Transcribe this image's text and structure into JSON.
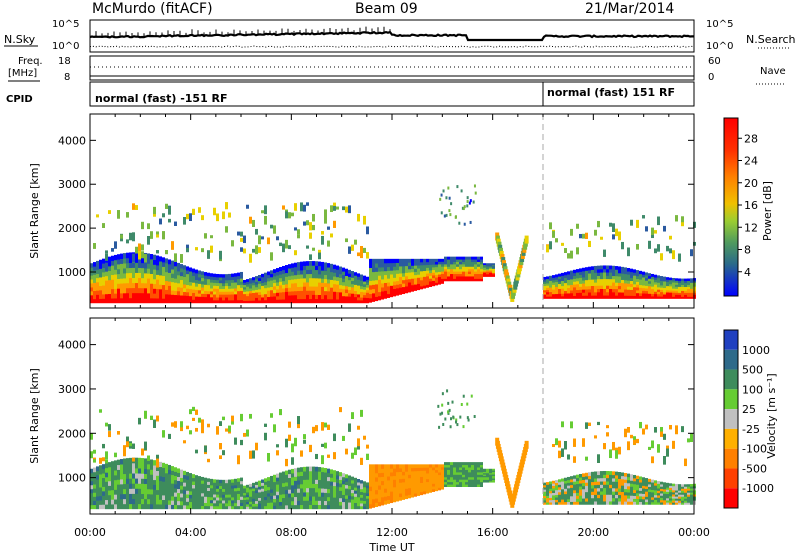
{
  "header": {
    "station": "McMurdo (fitACF)",
    "beam": "Beam 09",
    "date": "21/Mar/2014"
  },
  "top_panels": {
    "nsky_label": "N.Sky",
    "nsky_ticks": [
      "10^5",
      "10^0"
    ],
    "nsearch_label": "N.Search",
    "freq_label_1": "Freq.",
    "freq_label_2": "[MHz]",
    "freq_ticks": [
      "18",
      "8"
    ],
    "nave_label": "Nave",
    "nave_ticks": [
      "60",
      "0"
    ],
    "cpid_label": "CPID",
    "cpid_segments": [
      {
        "start_hour": 0,
        "text": "normal (fast) -151 RF"
      },
      {
        "start_hour": 18,
        "text": "normal (fast) 151 RF"
      }
    ]
  },
  "chart_data": [
    {
      "type": "heatmap",
      "panel": "power",
      "ylabel": "Slant Range [km]",
      "y_ticks": [
        1000,
        2000,
        3000,
        4000
      ],
      "x_ticks": [
        "00:00",
        "04:00",
        "08:00",
        "12:00",
        "16:00",
        "20:00",
        "00:00"
      ],
      "xlim_hours": [
        0,
        24
      ],
      "ylim_km": [
        180,
        4600
      ],
      "colorbar": {
        "label": "Power [dB]",
        "tick_labels": [
          "28",
          "24",
          "20",
          "16",
          "12",
          "8",
          "4"
        ],
        "colors": [
          "#ff0000",
          "#ff4000",
          "#ff8000",
          "#ffb000",
          "#e0d800",
          "#9acd32",
          "#5aa05a",
          "#3a7a58",
          "#2050b0",
          "#0000ff"
        ]
      }
    },
    {
      "type": "heatmap",
      "panel": "velocity",
      "ylabel": "Slant Range [km]",
      "y_ticks": [
        1000,
        2000,
        3000,
        4000
      ],
      "x_ticks": [
        "00:00",
        "04:00",
        "08:00",
        "12:00",
        "16:00",
        "20:00",
        "00:00"
      ],
      "xlim_hours": [
        0,
        24
      ],
      "ylim_km": [
        180,
        4600
      ],
      "xlabel": "Time UT",
      "colorbar": {
        "label": "Velocity [m s⁻¹]",
        "tick_labels": [
          "1000",
          "500",
          "100",
          "25",
          "-25",
          "-100",
          "-500",
          "-1000"
        ],
        "colors": [
          "#2040c0",
          "#2e6a8a",
          "#3e8c5c",
          "#66cc33",
          "#c0c0c0",
          "#ffb000",
          "#ff8000",
          "#ff4000",
          "#ff0000"
        ]
      }
    }
  ]
}
